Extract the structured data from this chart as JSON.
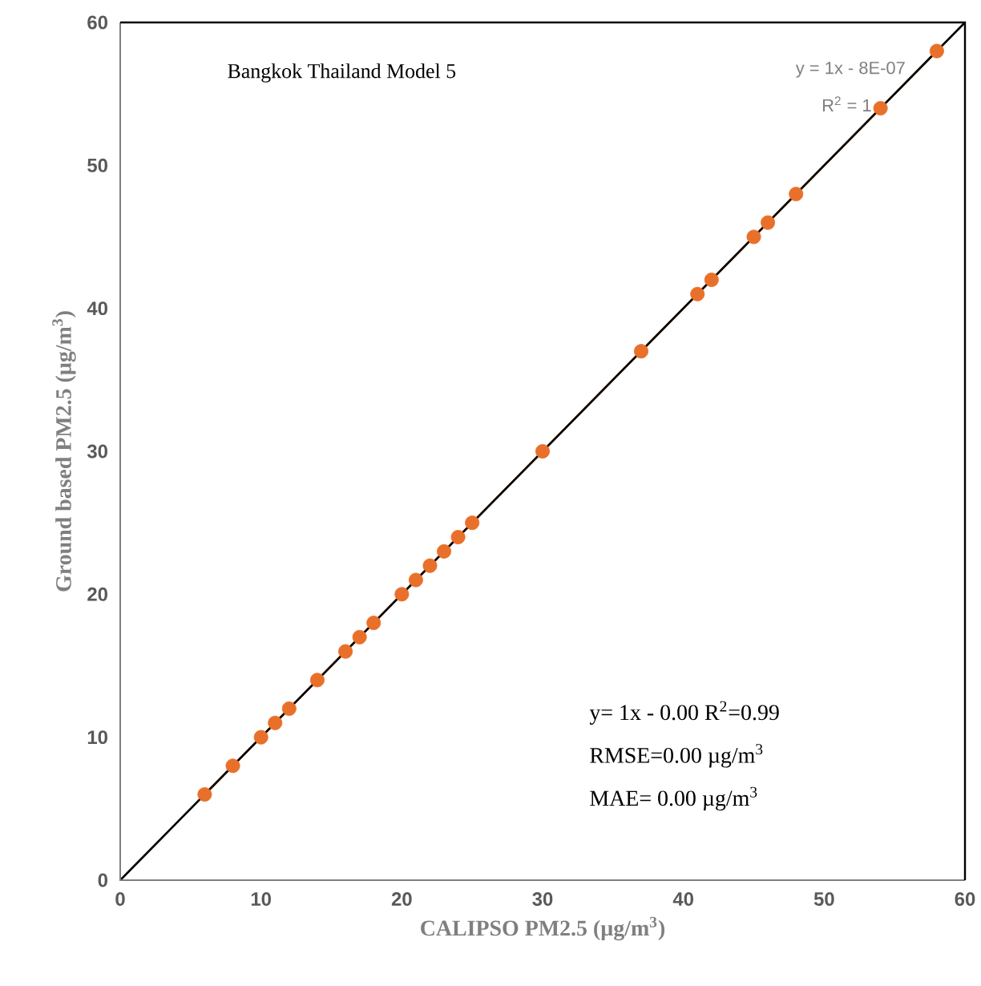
{
  "chart_data": {
    "type": "scatter",
    "title": "Bangkok Thailand Model 5",
    "xlabel": "CALIPSO PM2.5 (µg/m$^{3}$)",
    "ylabel": "Ground based PM2.5 (µg/m$^{3}$)",
    "xlim": [
      0,
      60
    ],
    "ylim": [
      0,
      60
    ],
    "xticks": [
      0,
      10,
      20,
      30,
      40,
      50,
      60
    ],
    "yticks": [
      0,
      10,
      20,
      30,
      40,
      50,
      60
    ],
    "series": [
      {
        "type": "line",
        "marker": "none",
        "color": "#e8702a",
        "x": [
          6,
          58
        ],
        "values": [
          6,
          58
        ]
      },
      {
        "marker": "circle",
        "color": "#e8702a",
        "x": [
          6,
          8,
          10,
          11,
          12,
          14,
          16,
          17,
          18,
          20,
          21,
          22,
          23,
          24,
          25,
          30,
          37,
          41,
          42,
          45,
          46,
          48,
          54,
          58
        ],
        "values": [
          6,
          8,
          10,
          11,
          12,
          14,
          16,
          17,
          18,
          20,
          21,
          22,
          23,
          24,
          25,
          30,
          37,
          41,
          42,
          45,
          46,
          48,
          54,
          58
        ]
      },
      {
        "type": "line",
        "marker": "none",
        "color": "#000000",
        "x": [
          0,
          60
        ],
        "values": [
          0,
          60
        ]
      }
    ],
    "annotations": [
      "y = 1x - 8E-07",
      "R$^{2}$ = 1",
      "y= 1x - 0.00  R$^{2}$=0.99",
      "RMSE=0.00 µg/m$^{3}$",
      "MAE= 0.00 µg/m$^{3}$"
    ]
  }
}
